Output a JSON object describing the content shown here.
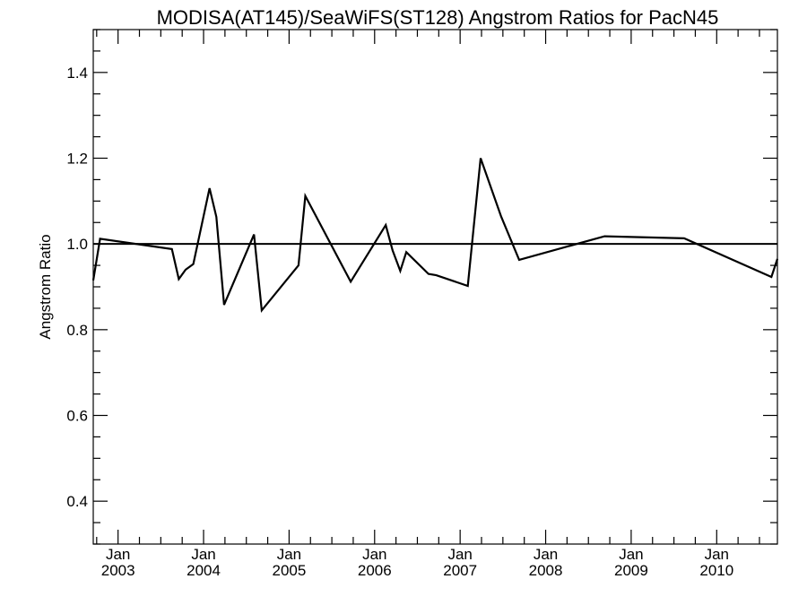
{
  "chart_data": {
    "type": "line",
    "title": "MODISA(AT145)/SeaWiFS(ST128)  Angstrom Ratios for PacN45",
    "xlabel": "",
    "ylabel": "Angstrom Ratio",
    "ylim": [
      0.3,
      1.5
    ],
    "y_ticks": [
      0.4,
      0.6,
      0.8,
      1.0,
      1.2,
      1.4
    ],
    "y_tick_labels": [
      "0.4",
      "0.6",
      "0.8",
      "1.0",
      "1.2",
      "1.4"
    ],
    "y_minor_step": 0.05,
    "xlim": [
      2002.71,
      2010.71
    ],
    "x_ticks": [
      {
        "month": "Jan",
        "year": "2003",
        "x": 2003.0
      },
      {
        "month": "Jan",
        "year": "2004",
        "x": 2004.0
      },
      {
        "month": "Jan",
        "year": "2005",
        "x": 2005.0
      },
      {
        "month": "Jan",
        "year": "2006",
        "x": 2006.0
      },
      {
        "month": "Jan",
        "year": "2007",
        "x": 2007.0
      },
      {
        "month": "Jan",
        "year": "2008",
        "x": 2008.0
      },
      {
        "month": "Jan",
        "year": "2009",
        "x": 2009.0
      },
      {
        "month": "Jan",
        "year": "2010",
        "x": 2010.0
      }
    ],
    "x_minor_per_year": 4,
    "reference_line": 1.0,
    "grid": false,
    "series": [
      {
        "x": [
          2002.71,
          2002.79,
          2003.63,
          2003.71,
          2003.79,
          2003.88,
          2004.07,
          2004.15,
          2004.24,
          2004.59,
          2004.68,
          2005.11,
          2005.19,
          2005.72,
          2006.13,
          2006.21,
          2006.3,
          2006.37,
          2006.63,
          2006.72,
          2007.09,
          2007.24,
          2007.48,
          2007.69,
          2008.69,
          2009.62,
          2010.64,
          2010.71
        ],
        "y": [
          0.915,
          1.012,
          0.988,
          0.918,
          0.94,
          0.953,
          1.13,
          1.063,
          0.858,
          1.022,
          0.845,
          0.95,
          1.112,
          0.912,
          1.044,
          0.985,
          0.937,
          0.981,
          0.93,
          0.927,
          0.902,
          1.2,
          1.064,
          0.963,
          1.018,
          1.013,
          0.923,
          0.965
        ]
      }
    ]
  }
}
